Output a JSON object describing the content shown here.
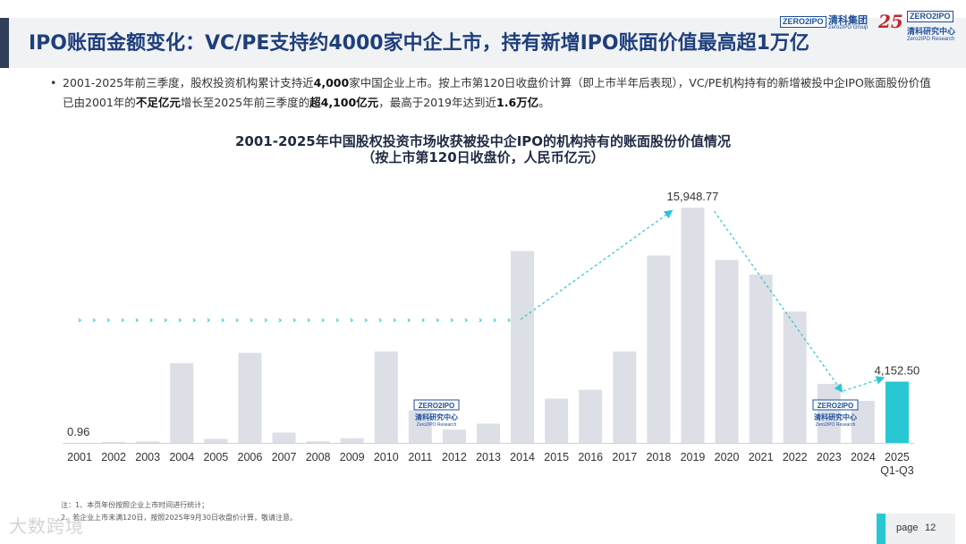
{
  "header": {
    "title": "IPO账面金额变化：VC/PE支持约4000家中企上市，持有新增IPO账面价值最高超1万亿",
    "logo_group_mark": "ZERO2IPO",
    "logo_group_cn": "清科集团",
    "logo_group_en": "Zero2IPO Group",
    "logo_25": "25",
    "logo_research_mark": "ZERO2IPO",
    "logo_research_cn": "清科研究中心",
    "logo_research_en": "Zero2IPO Research"
  },
  "bullet": {
    "symbol": "•",
    "p1": "2001-2025年前三季度，股权投资机构累计支持近",
    "b1": "4,000",
    "p2": "家中国企业上市。按上市第120日收盘价计算（即上市半年后表现），VC/PE机构持有的新增被投中企IPO账面股份价值已由2001年的",
    "b2": "不足亿元",
    "p3": "增长至2025年前三季度的",
    "b3": "超4,100亿元",
    "p4": "，最高于2019年达到近",
    "b4": "1.6万亿",
    "p5": "。"
  },
  "chart_title_line1": "2001-2025年中国股权投资市场收获被投中企IPO的机构持有的账面股份价值情况",
  "chart_title_line2": "（按上市第120日收盘价，人民币亿元）",
  "watermark_logos": [
    {
      "mark": "ZERO2IPO",
      "cn": "清科研究中心",
      "en": "Zero2IPO Research"
    },
    {
      "mark": "ZERO2IPO",
      "cn": "清科研究中心",
      "en": "Zero2IPO Research"
    }
  ],
  "chart_data": {
    "type": "bar",
    "categories": [
      "2001",
      "2002",
      "2003",
      "2004",
      "2005",
      "2006",
      "2007",
      "2008",
      "2009",
      "2010",
      "2011",
      "2012",
      "2013",
      "2014",
      "2015",
      "2016",
      "2017",
      "2018",
      "2019",
      "2020",
      "2021",
      "2022",
      "2023",
      "2024",
      "2025\nQ1-Q3"
    ],
    "values": [
      0.96,
      60,
      100,
      5400,
      270,
      6100,
      700,
      110,
      320,
      6200,
      2200,
      900,
      1300,
      13000,
      3000,
      3600,
      6200,
      12700,
      15948.77,
      12400,
      11400,
      8900,
      4000,
      2850,
      4152.5
    ],
    "data_labels": [
      {
        "category": "2001",
        "text": "0.96"
      },
      {
        "category": "2019",
        "text": "15,948.77"
      },
      {
        "category": "2025\nQ1-Q3",
        "text": "4,152.50"
      }
    ],
    "ylim": [
      0,
      16500
    ],
    "colors": {
      "bar": "#dcdfe6",
      "highlight": "#27c7d3",
      "arrow": "#27c7d3"
    },
    "highlight_category": "2025\nQ1-Q3",
    "axis_line": true,
    "grid": false
  },
  "notes": {
    "line1": "注：1、本页年份按照企业上市时间进行统计；",
    "line2": "2、若企业上市未满120日，按照2025年9月30日收盘价计算，敬请注意。"
  },
  "watermark": "大数跨境",
  "page": {
    "label": "page",
    "number": "12"
  }
}
